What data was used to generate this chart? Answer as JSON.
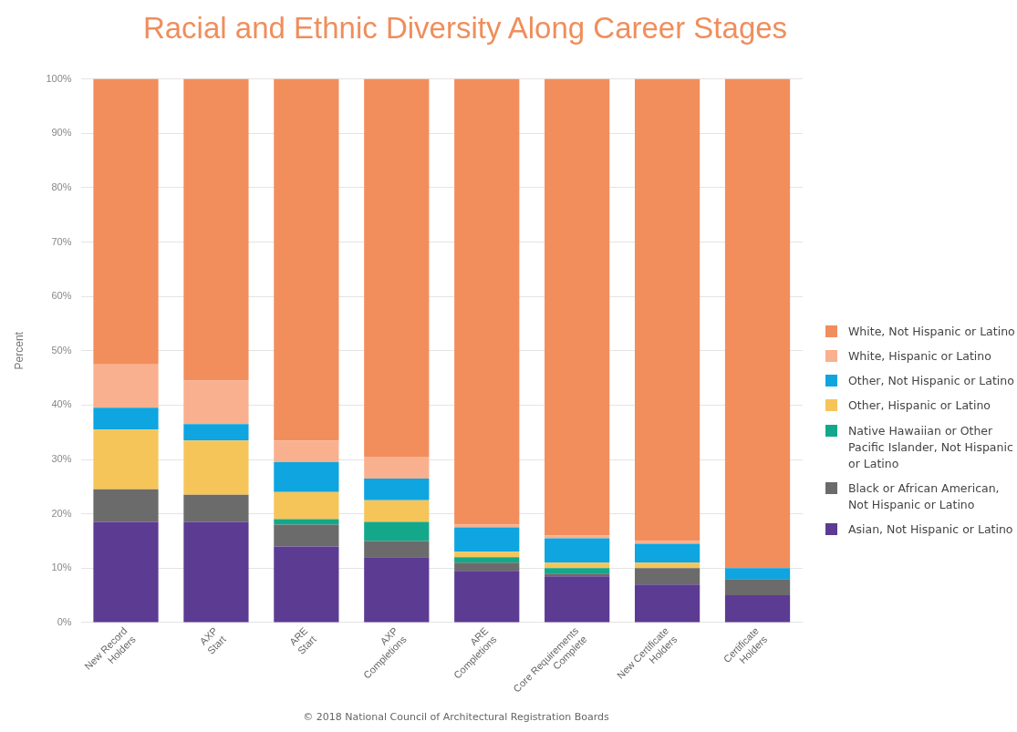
{
  "chart_data": {
    "type": "bar",
    "title": "Racial and Ethnic Diversity Along Career Stages",
    "ylabel": "Percent",
    "stacked": true,
    "categories": [
      "New Record Holders",
      "AXP Start",
      "ARE Start",
      "AXP Completions",
      "ARE Completions",
      "Core Requirements Complete",
      "New Certificate Holders",
      "Certificate Holders"
    ],
    "series": [
      {
        "name": "Asian, Not Hispanic or Latino",
        "color": "#5c3b93",
        "values": [
          18.5,
          18.5,
          14,
          12,
          9.5,
          8.5,
          7,
          5
        ]
      },
      {
        "name": "Black or African American, Not Hispanic or Latino",
        "color": "#6b6b6b",
        "values": [
          6,
          5,
          4,
          3,
          1.5,
          0.5,
          3,
          3
        ]
      },
      {
        "name": "Native Hawaiian or Other Pacific Islander, Not Hispanic or Latino",
        "color": "#13a88a",
        "values": [
          0,
          0,
          1,
          3.5,
          1,
          1,
          0,
          0
        ]
      },
      {
        "name": "Other, Hispanic or Latino",
        "color": "#f5c55a",
        "values": [
          11,
          10,
          5,
          4,
          1,
          1,
          1,
          0
        ]
      },
      {
        "name": "Other, Not Hispanic or Latino",
        "color": "#0ea5e0",
        "values": [
          4,
          3,
          5.5,
          4,
          4.5,
          4.5,
          3.5,
          2
        ]
      },
      {
        "name": "White, Hispanic or Latino",
        "color": "#f9b08e",
        "values": [
          8,
          8,
          4,
          4,
          0.5,
          0.5,
          0.5,
          0
        ]
      },
      {
        "name": "White, Not Hispanic or Latino",
        "color": "#f28e5c",
        "values": [
          52.5,
          55.5,
          66.5,
          69.5,
          82,
          84,
          85,
          90
        ]
      }
    ],
    "ylim": [
      0,
      100
    ],
    "yticks": [
      {
        "value": 0,
        "label": "0%"
      },
      {
        "value": 10,
        "label": "10%"
      },
      {
        "value": 20,
        "label": "20%"
      },
      {
        "value": 30,
        "label": "30%"
      },
      {
        "value": 40,
        "label": "40%"
      },
      {
        "value": 50,
        "label": "50%"
      },
      {
        "value": 60,
        "label": "60%"
      },
      {
        "value": 70,
        "label": "70%"
      },
      {
        "value": 80,
        "label": "80%"
      },
      {
        "value": 90,
        "label": "90%"
      },
      {
        "value": 100,
        "label": "100%"
      }
    ],
    "grid": "y",
    "legend": "right",
    "annotations": [
      "© 2018 National Council of Architectural Registration Boards"
    ]
  }
}
